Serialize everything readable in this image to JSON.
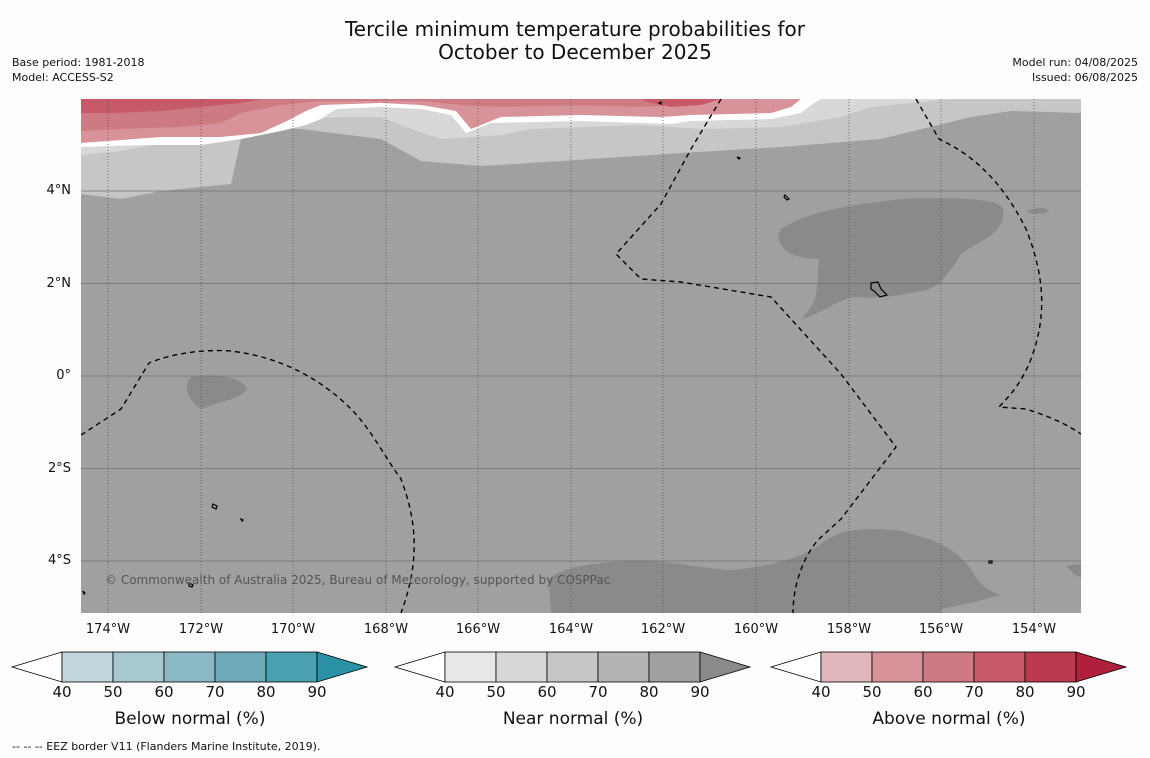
{
  "title_line1": "Tercile minimum temperature probabilities for",
  "title_line2": "October to December 2025",
  "base_period": "Base period: 1981-2018",
  "model": "Model: ACCESS-S2",
  "model_run": "Model run: 04/08/2025",
  "issued": "Issued: 06/08/2025",
  "lat_labels": [
    "4°N",
    "2°N",
    "0°",
    "2°S",
    "4°S"
  ],
  "lon_labels": [
    "174°W",
    "172°W",
    "170°W",
    "168°W",
    "166°W",
    "164°W",
    "162°W",
    "160°W",
    "158°W",
    "156°W",
    "154°W"
  ],
  "copyright": "© Commonwealth of Australia 2025, Bureau of Meteorology, supported by COSPPac",
  "colorbars": [
    {
      "label": "Below normal (%)",
      "ticks": [
        "40",
        "50",
        "60",
        "70",
        "80",
        "90"
      ],
      "colors": [
        "#bed6dc",
        "#a6c8ce",
        "#8ab9c4",
        "#6eabb9",
        "#4a9fb0",
        "#2b91a6"
      ]
    },
    {
      "label": "Near normal (%)",
      "ticks": [
        "40",
        "50",
        "60",
        "70",
        "80",
        "90"
      ],
      "colors": [
        "#e8e8e8",
        "#d8d8d8",
        "#c6c6c6",
        "#b4b4b4",
        "#a0a0a0",
        "#8a8a8a"
      ]
    },
    {
      "label": "Above normal (%)",
      "ticks": [
        "40",
        "50",
        "60",
        "70",
        "80",
        "90"
      ],
      "colors": [
        "#e2b7bc",
        "#d8929a",
        "#cd7a83",
        "#c65a68",
        "#bb3a4e",
        "#b01f3c"
      ]
    }
  ],
  "footnote": "--  --  -- EEZ border V11 (Flanders Marine Institute, 2019)."
}
